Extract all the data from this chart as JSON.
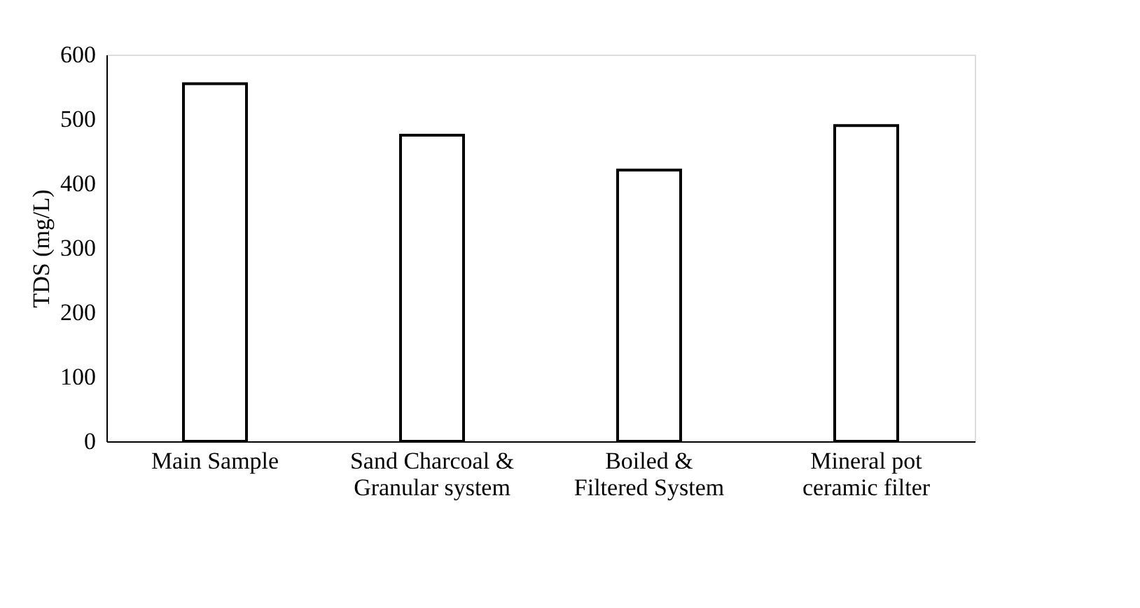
{
  "chart_data": {
    "type": "bar",
    "ylabel": "TDS (mg/L)",
    "categories": [
      "Main Sample",
      "Sand Charcoal & Granular system",
      "Boiled & Filtered System",
      "Mineral pot ceramic filter"
    ],
    "values": [
      555,
      475,
      421,
      490
    ],
    "color": "#000000",
    "ylim": [
      0,
      600
    ],
    "yticks": [
      0,
      100,
      200,
      300,
      400,
      500,
      600
    ],
    "grid": false
  }
}
